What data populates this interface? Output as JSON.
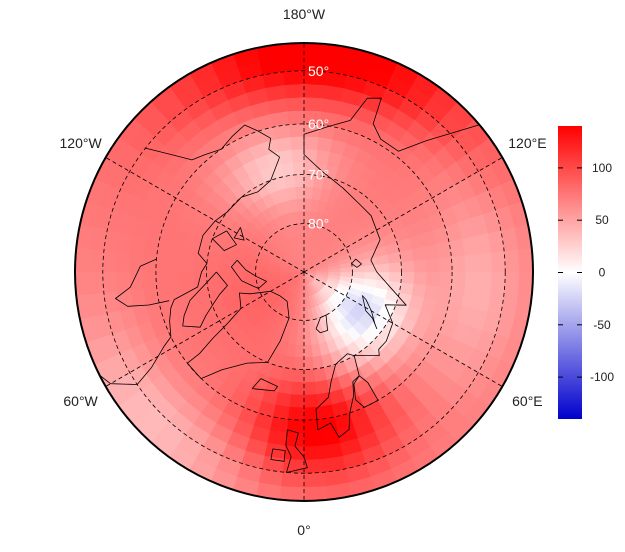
{
  "map": {
    "projection": "north-polar-stereographic",
    "longitude_labels": [
      {
        "text": "180°W",
        "lon": 180
      },
      {
        "text": "120°E",
        "lon": 120
      },
      {
        "text": "60°E",
        "lon": 60
      },
      {
        "text": "0°",
        "lon": 0
      },
      {
        "text": "60°W",
        "lon": -60
      },
      {
        "text": "120°W",
        "lon": -120
      }
    ],
    "latitude_labels": [
      {
        "text": "50°",
        "lat": 50
      },
      {
        "text": "60°",
        "lat": 60
      },
      {
        "text": "70°",
        "lat": 70
      },
      {
        "text": "80°",
        "lat": 80
      }
    ],
    "grid_style": "dashed",
    "field": {
      "description_source": "shaded anomaly field",
      "max_positive_regions": [
        "north Atlantic / Scandinavia near 0°",
        "north Pacific near 180°"
      ],
      "negative_region": "Barents/Kara sea"
    },
    "colors": {
      "positive": "#ff0000",
      "neutral": "#ffffff",
      "negative": "#0000cc",
      "land_outline": "#000000"
    }
  },
  "colorbar": {
    "min": -140,
    "max": 140,
    "ticks": [
      {
        "label": "100",
        "value": 100
      },
      {
        "label": "50",
        "value": 50
      },
      {
        "label": "0",
        "value": 0
      },
      {
        "label": "-50",
        "value": -50
      },
      {
        "label": "-100",
        "value": -100
      }
    ],
    "color_top": "#ff0000",
    "color_mid": "#ffffff",
    "color_bottom": "#0000cc"
  }
}
